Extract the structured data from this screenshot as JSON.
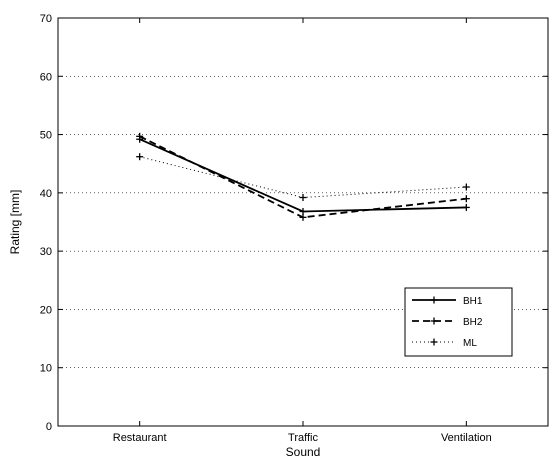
{
  "chart_data": {
    "type": "line",
    "categories": [
      "Restaurant",
      "Traffic",
      "Ventilation"
    ],
    "series": [
      {
        "name": "BH1",
        "values": [
          49.2,
          36.8,
          37.5
        ],
        "style": "solid"
      },
      {
        "name": "BH2",
        "values": [
          49.7,
          35.8,
          39.0
        ],
        "style": "dashed"
      },
      {
        "name": "ML",
        "values": [
          46.2,
          39.2,
          41.0
        ],
        "style": "dotted"
      }
    ],
    "xlabel": "Sound",
    "ylabel": "Rating [mm]",
    "ylim": [
      0,
      70
    ],
    "yticks": [
      0,
      10,
      20,
      30,
      40,
      50,
      60,
      70
    ],
    "grid": "horizontal-dotted",
    "legend_position": "lower-right",
    "colors": {
      "line": "#000000",
      "grid": "#000000",
      "background": "#ffffff"
    }
  }
}
